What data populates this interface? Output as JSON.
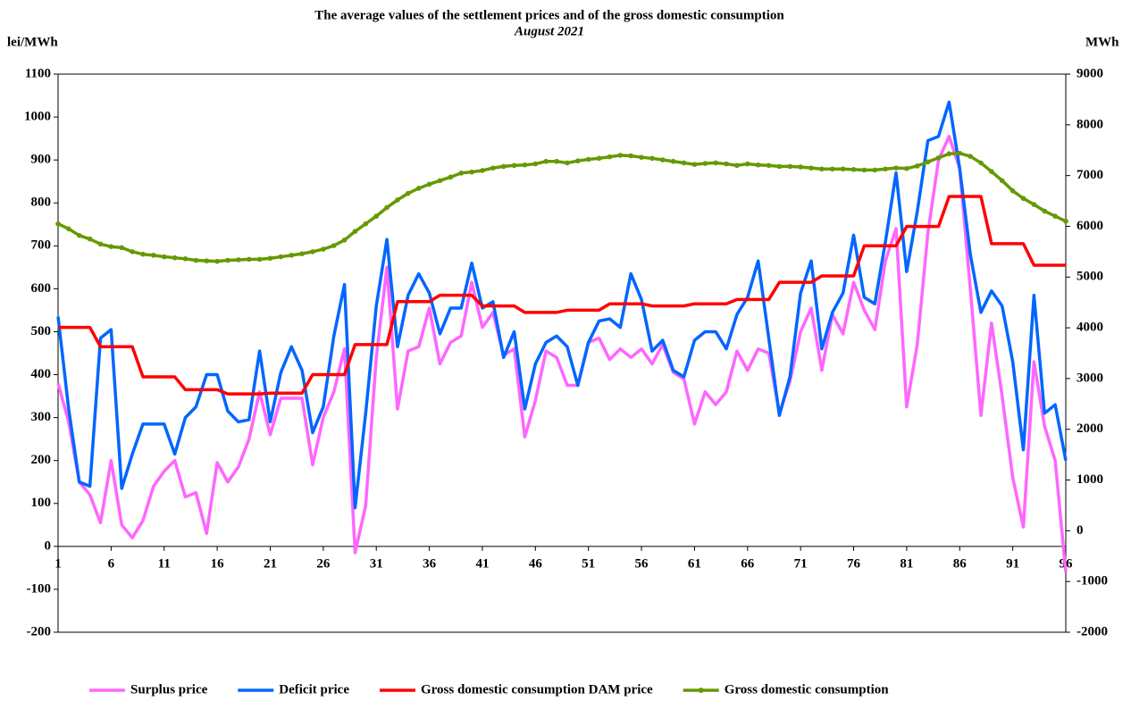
{
  "chart_data": {
    "type": "line",
    "title": "The average values of the settlement prices and of the gross domestic consumption",
    "subtitle": "August 2021",
    "y_label": "lei/MWh",
    "y2_label": "MWh",
    "x": [
      1,
      2,
      3,
      4,
      5,
      6,
      7,
      8,
      9,
      10,
      11,
      12,
      13,
      14,
      15,
      16,
      17,
      18,
      19,
      20,
      21,
      22,
      23,
      24,
      25,
      26,
      27,
      28,
      29,
      30,
      31,
      32,
      33,
      34,
      35,
      36,
      37,
      38,
      39,
      40,
      41,
      42,
      43,
      44,
      45,
      46,
      47,
      48,
      49,
      50,
      51,
      52,
      53,
      54,
      55,
      56,
      57,
      58,
      59,
      60,
      61,
      62,
      63,
      64,
      65,
      66,
      67,
      68,
      69,
      70,
      71,
      72,
      73,
      74,
      75,
      76,
      77,
      78,
      79,
      80,
      81,
      82,
      83,
      84,
      85,
      86,
      87,
      88,
      89,
      90,
      91,
      92,
      93,
      94,
      95,
      96
    ],
    "xlim": [
      1,
      96
    ],
    "xticks": [
      1,
      6,
      11,
      16,
      21,
      26,
      31,
      36,
      41,
      46,
      51,
      56,
      61,
      66,
      71,
      76,
      81,
      86,
      91,
      96
    ],
    "ylim": [
      -200,
      1100
    ],
    "yticks": [
      -200,
      -100,
      0,
      100,
      200,
      300,
      400,
      500,
      600,
      700,
      800,
      900,
      1000,
      1100
    ],
    "y2lim": [
      -2000,
      9000
    ],
    "y2ticks": [
      -2000,
      -1000,
      0,
      1000,
      2000,
      3000,
      4000,
      5000,
      6000,
      7000,
      8000,
      9000
    ],
    "legend": "bottom",
    "series": [
      {
        "name": "Surplus price",
        "color": "#ff66ff",
        "values": [
          380,
          290,
          150,
          120,
          55,
          200,
          50,
          20,
          60,
          140,
          175,
          200,
          115,
          125,
          30,
          195,
          150,
          185,
          250,
          360,
          260,
          345,
          345,
          345,
          190,
          300,
          360,
          460,
          -15,
          95,
          440,
          650,
          320,
          455,
          465,
          555,
          425,
          475,
          490,
          615,
          510,
          545,
          445,
          460,
          255,
          340,
          455,
          440,
          375,
          375,
          475,
          485,
          435,
          460,
          440,
          460,
          425,
          470,
          405,
          390,
          285,
          360,
          330,
          360,
          455,
          410,
          460,
          450,
          310,
          385,
          500,
          555,
          410,
          540,
          495,
          615,
          550,
          505,
          665,
          740,
          325,
          470,
          730,
          900,
          955,
          880,
          600,
          305,
          520,
          350,
          160,
          45,
          430,
          280,
          200,
          -60
        ]
      },
      {
        "name": "Deficit price",
        "color": "#0066ff",
        "values": [
          535,
          320,
          150,
          140,
          485,
          505,
          135,
          215,
          285,
          285,
          285,
          215,
          300,
          325,
          400,
          400,
          315,
          290,
          295,
          455,
          290,
          405,
          465,
          410,
          265,
          325,
          490,
          610,
          90,
          310,
          560,
          715,
          465,
          585,
          635,
          590,
          495,
          555,
          555,
          660,
          555,
          570,
          440,
          500,
          320,
          425,
          475,
          490,
          465,
          375,
          475,
          525,
          530,
          510,
          635,
          575,
          455,
          480,
          410,
          395,
          480,
          500,
          500,
          460,
          540,
          580,
          665,
          485,
          305,
          395,
          590,
          665,
          460,
          545,
          590,
          725,
          580,
          565,
          710,
          870,
          640,
          780,
          945,
          955,
          1035,
          880,
          680,
          545,
          595,
          560,
          430,
          225,
          585,
          310,
          330,
          200
        ]
      },
      {
        "name": "Gross domestic consumption DAM price",
        "color": "#ff0000",
        "values": [
          510,
          510,
          510,
          510,
          465,
          465,
          465,
          465,
          395,
          395,
          395,
          395,
          365,
          365,
          365,
          365,
          355,
          355,
          355,
          355,
          357,
          357,
          357,
          357,
          400,
          400,
          400,
          400,
          470,
          470,
          470,
          470,
          570,
          570,
          570,
          570,
          585,
          585,
          585,
          585,
          560,
          560,
          560,
          560,
          545,
          545,
          545,
          545,
          550,
          550,
          550,
          550,
          565,
          565,
          565,
          565,
          560,
          560,
          560,
          560,
          565,
          565,
          565,
          565,
          575,
          575,
          575,
          575,
          615,
          615,
          615,
          615,
          630,
          630,
          630,
          630,
          700,
          700,
          700,
          700,
          745,
          745,
          745,
          745,
          815,
          815,
          815,
          815,
          705,
          705,
          705,
          705,
          655,
          655,
          655,
          655
        ]
      },
      {
        "name": "Gross domestic consumption",
        "color": "#669900",
        "axis": "y2",
        "marker": "circle",
        "values": [
          6050,
          5950,
          5820,
          5750,
          5650,
          5600,
          5580,
          5500,
          5450,
          5430,
          5400,
          5380,
          5360,
          5330,
          5320,
          5310,
          5330,
          5340,
          5350,
          5350,
          5370,
          5400,
          5430,
          5460,
          5500,
          5550,
          5620,
          5730,
          5900,
          6050,
          6200,
          6370,
          6520,
          6650,
          6750,
          6830,
          6900,
          6970,
          7050,
          7070,
          7100,
          7150,
          7180,
          7200,
          7210,
          7230,
          7280,
          7280,
          7250,
          7290,
          7320,
          7340,
          7370,
          7400,
          7390,
          7360,
          7340,
          7310,
          7280,
          7250,
          7220,
          7240,
          7250,
          7230,
          7200,
          7230,
          7210,
          7200,
          7180,
          7180,
          7170,
          7150,
          7130,
          7130,
          7130,
          7120,
          7110,
          7110,
          7130,
          7150,
          7140,
          7190,
          7270,
          7350,
          7430,
          7440,
          7380,
          7250,
          7080,
          6900,
          6700,
          6550,
          6430,
          6300,
          6200,
          6100
        ]
      }
    ]
  }
}
